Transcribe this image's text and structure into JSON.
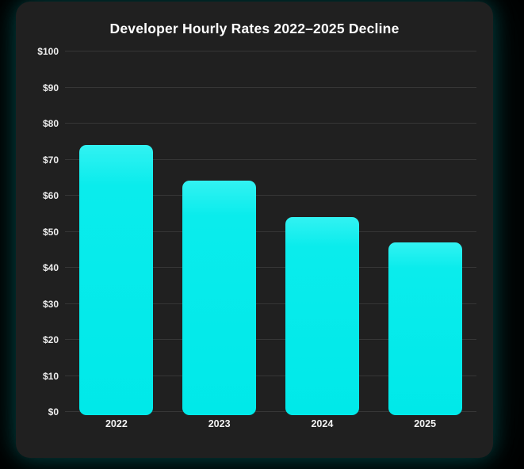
{
  "window": {
    "background": "#000000",
    "panel_background": "#202020",
    "glow_color": "#00e7e7"
  },
  "chart_data": {
    "type": "bar",
    "title": "Developer Hourly Rates 2022–2025 Decline",
    "categories": [
      "2022",
      "2023",
      "2024",
      "2025"
    ],
    "values": [
      75,
      65,
      55,
      48
    ],
    "y_ticks": [
      "$0",
      "$10",
      "$20",
      "$30",
      "$40",
      "$50",
      "$60",
      "$70",
      "$80",
      "$90",
      "$100"
    ],
    "y_tick_values": [
      0,
      10,
      20,
      30,
      40,
      50,
      60,
      70,
      80,
      90,
      100
    ],
    "ylim": [
      0,
      100
    ],
    "xlabel": "",
    "ylabel": "",
    "bar_color": "#00e9e9",
    "grid": true,
    "legend": false,
    "currency_unit": "$"
  }
}
